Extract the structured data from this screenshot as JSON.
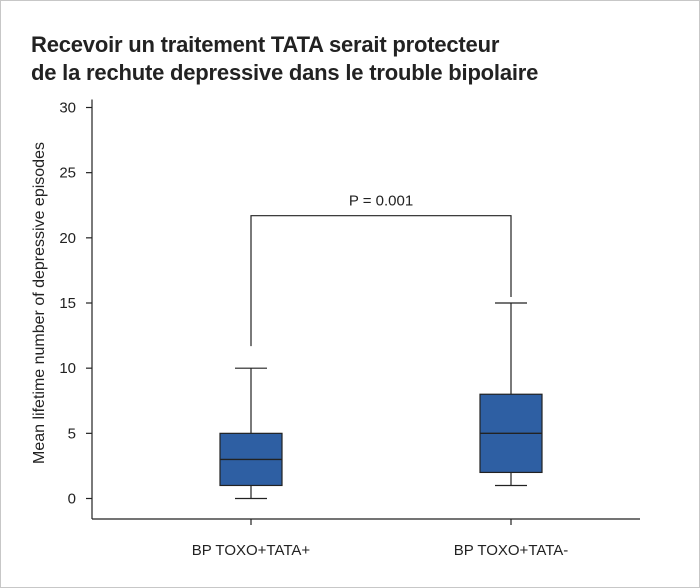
{
  "chart_data": {
    "type": "box",
    "title": [
      "Recevoir un traitement TATA serait protecteur",
      "de la rechute depressive dans le trouble bipolaire"
    ],
    "xlabel": "",
    "ylabel": "Mean lifetime number of depressive episodes",
    "ylim": [
      0,
      30
    ],
    "yticks": [
      0,
      5,
      10,
      15,
      20,
      25,
      30
    ],
    "categories": [
      "BP TOXO+TATA+",
      "BP TOXO+TATA-"
    ],
    "boxes": [
      {
        "category": "BP TOXO+TATA+",
        "whisker_low": 0,
        "q1": 1,
        "median": 3,
        "q3": 5,
        "whisker_high": 10
      },
      {
        "category": "BP TOXO+TATA-",
        "whisker_low": 1,
        "q1": 2,
        "median": 5,
        "q3": 8,
        "whisker_high": 15
      }
    ],
    "annotation": {
      "text": "P = 0.001",
      "y": 21.7
    },
    "box_color": "#2e5fa3",
    "grid": false,
    "legend": "none"
  }
}
